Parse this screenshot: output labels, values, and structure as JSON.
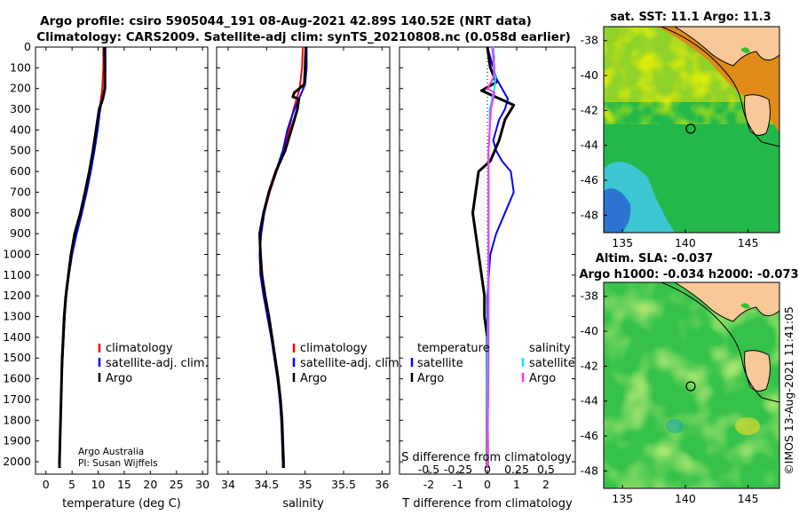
{
  "header": {
    "title1": "Argo profile: csiro 5905044_191 08-Aug-2021 42.89S 140.52E (NRT data)",
    "title2": "Climatology: CARS2009. Satellite-adj clim: synTS_20210808.nc (0.058d earlier)"
  },
  "colors": {
    "climatology": "#ff0000",
    "satellite": "#0000ff",
    "argo": "#000000",
    "sat_salinity": "#00e5ff",
    "argo_salinity": "#ff33ff",
    "land": "#f8c898"
  },
  "credits": {
    "line1": "Argo Australia",
    "line2": "PI: Susan Wijffels"
  },
  "watermark": "©IMOS 13-Aug-2021 11:41:05",
  "chart_data": [
    {
      "type": "line",
      "xlabel": "temperature (deg C)",
      "ylabel": "",
      "xlim": [
        -2,
        31
      ],
      "ylim": [
        2060,
        0
      ],
      "xticks": [
        "0",
        "5",
        "10",
        "15",
        "20",
        "25",
        "30"
      ],
      "yticks": [
        "0",
        "100",
        "200",
        "300",
        "400",
        "500",
        "600",
        "700",
        "800",
        "900",
        "1000",
        "1100",
        "1200",
        "1300",
        "1400",
        "1500",
        "1600",
        "1700",
        "1800",
        "1900",
        "2000"
      ],
      "legend": [
        "climatology",
        "satellite-adj. clim.",
        "Argo"
      ],
      "series": [
        {
          "name": "climatology",
          "points": [
            [
              11.0,
              0
            ],
            [
              11.0,
              100
            ],
            [
              10.8,
              200
            ],
            [
              10.3,
              300
            ],
            [
              9.8,
              400
            ],
            [
              9.2,
              500
            ],
            [
              8.5,
              600
            ],
            [
              7.7,
              700
            ],
            [
              6.9,
              800
            ],
            [
              5.8,
              900
            ],
            [
              5.0,
              1000
            ],
            [
              4.4,
              1100
            ],
            [
              3.9,
              1200
            ],
            [
              3.6,
              1300
            ],
            [
              3.4,
              1400
            ],
            [
              3.2,
              1500
            ],
            [
              3.0,
              1600
            ],
            [
              2.9,
              1700
            ],
            [
              2.8,
              1800
            ],
            [
              2.7,
              1900
            ],
            [
              2.6,
              2000
            ],
            [
              2.6,
              2030
            ]
          ]
        },
        {
          "name": "satellite-adj. clim.",
          "points": [
            [
              11.4,
              0
            ],
            [
              11.4,
              100
            ],
            [
              11.2,
              200
            ],
            [
              10.4,
              300
            ],
            [
              9.9,
              400
            ],
            [
              9.3,
              500
            ],
            [
              8.6,
              600
            ],
            [
              7.8,
              700
            ],
            [
              6.9,
              800
            ],
            [
              5.9,
              900
            ],
            [
              5.0,
              1000
            ],
            [
              4.4,
              1100
            ],
            [
              3.9,
              1200
            ],
            [
              3.6,
              1300
            ],
            [
              3.4,
              1400
            ],
            [
              3.2,
              1500
            ],
            [
              3.0,
              1600
            ],
            [
              2.9,
              1700
            ],
            [
              2.8,
              1800
            ],
            [
              2.7,
              1900
            ],
            [
              2.6,
              2000
            ],
            [
              2.6,
              2030
            ]
          ]
        },
        {
          "name": "Argo",
          "points": [
            [
              11.2,
              0
            ],
            [
              11.3,
              100
            ],
            [
              11.3,
              200
            ],
            [
              10.9,
              250
            ],
            [
              10.2,
              300
            ],
            [
              9.6,
              400
            ],
            [
              9.0,
              500
            ],
            [
              8.3,
              600
            ],
            [
              7.5,
              700
            ],
            [
              6.6,
              800
            ],
            [
              5.5,
              900
            ],
            [
              4.8,
              1000
            ],
            [
              4.3,
              1100
            ],
            [
              3.8,
              1200
            ],
            [
              3.5,
              1300
            ],
            [
              3.3,
              1400
            ],
            [
              3.1,
              1500
            ],
            [
              3.0,
              1600
            ],
            [
              2.9,
              1700
            ],
            [
              2.8,
              1800
            ],
            [
              2.7,
              1900
            ],
            [
              2.6,
              2000
            ],
            [
              2.6,
              2030
            ]
          ]
        }
      ]
    },
    {
      "type": "line",
      "xlabel": "salinity",
      "xlim": [
        33.85,
        36.1
      ],
      "ylim": [
        2060,
        0
      ],
      "xticks": [
        "34",
        "34.5",
        "35",
        "35.5",
        "36"
      ],
      "legend": [
        "climatology",
        "satellite-adj. clim.",
        "Argo"
      ],
      "series": [
        {
          "name": "climatology",
          "points": [
            [
              34.97,
              0
            ],
            [
              34.96,
              100
            ],
            [
              34.93,
              200
            ],
            [
              34.85,
              300
            ],
            [
              34.79,
              400
            ],
            [
              34.72,
              500
            ],
            [
              34.63,
              600
            ],
            [
              34.54,
              700
            ],
            [
              34.47,
              800
            ],
            [
              34.42,
              900
            ],
            [
              34.41,
              1000
            ],
            [
              34.42,
              1100
            ],
            [
              34.46,
              1200
            ],
            [
              34.51,
              1300
            ],
            [
              34.56,
              1400
            ],
            [
              34.6,
              1500
            ],
            [
              34.64,
              1600
            ],
            [
              34.67,
              1700
            ],
            [
              34.69,
              1800
            ],
            [
              34.7,
              1900
            ],
            [
              34.71,
              2000
            ],
            [
              34.71,
              2030
            ]
          ]
        },
        {
          "name": "satellite-adj. clim.",
          "points": [
            [
              35.02,
              0
            ],
            [
              35.02,
              100
            ],
            [
              35.0,
              180
            ],
            [
              34.92,
              250
            ],
            [
              34.84,
              320
            ],
            [
              34.77,
              400
            ],
            [
              34.71,
              500
            ],
            [
              34.62,
              600
            ],
            [
              34.53,
              700
            ],
            [
              34.47,
              800
            ],
            [
              34.43,
              900
            ],
            [
              34.41,
              1000
            ],
            [
              34.42,
              1100
            ],
            [
              34.46,
              1200
            ],
            [
              34.51,
              1300
            ],
            [
              34.56,
              1400
            ],
            [
              34.6,
              1500
            ],
            [
              34.64,
              1600
            ],
            [
              34.67,
              1700
            ],
            [
              34.69,
              1800
            ],
            [
              34.7,
              1900
            ],
            [
              34.71,
              2000
            ],
            [
              34.71,
              2030
            ]
          ]
        },
        {
          "name": "Argo",
          "points": [
            [
              35.01,
              0
            ],
            [
              35.0,
              100
            ],
            [
              34.99,
              180
            ],
            [
              34.86,
              220
            ],
            [
              34.84,
              240
            ],
            [
              34.92,
              250
            ],
            [
              34.9,
              300
            ],
            [
              34.82,
              400
            ],
            [
              34.74,
              500
            ],
            [
              34.62,
              600
            ],
            [
              34.53,
              700
            ],
            [
              34.46,
              800
            ],
            [
              34.41,
              900
            ],
            [
              34.42,
              1000
            ],
            [
              34.44,
              1100
            ],
            [
              34.48,
              1200
            ],
            [
              34.53,
              1300
            ],
            [
              34.57,
              1400
            ],
            [
              34.61,
              1500
            ],
            [
              34.65,
              1600
            ],
            [
              34.68,
              1700
            ],
            [
              34.7,
              1800
            ],
            [
              34.71,
              1900
            ],
            [
              34.72,
              2000
            ],
            [
              34.72,
              2030
            ]
          ]
        }
      ]
    },
    {
      "type": "line",
      "xlabel": "T difference from climatology",
      "top_xlabel": "S difference from climatology",
      "xlim": [
        -3,
        3
      ],
      "ylim": [
        2060,
        0
      ],
      "xticks": [
        "-2",
        "-1",
        "0",
        "1",
        "2"
      ],
      "top_xticks": [
        "-0.5",
        "-0.25",
        "0",
        "0.25",
        "0.5"
      ],
      "legend_groups": [
        {
          "title": "temperature",
          "items": [
            "satellite",
            "Argo"
          ]
        },
        {
          "title": "salinity",
          "items": [
            "satellite",
            "Argo"
          ]
        }
      ],
      "series": [
        {
          "name": "T satellite",
          "points": [
            [
              0.0,
              0
            ],
            [
              0.1,
              50
            ],
            [
              0.2,
              100
            ],
            [
              0.3,
              150
            ],
            [
              0.5,
              200
            ],
            [
              0.7,
              250
            ],
            [
              0.6,
              300
            ],
            [
              0.4,
              350
            ],
            [
              0.3,
              400
            ],
            [
              0.2,
              450
            ],
            [
              0.3,
              500
            ],
            [
              0.5,
              550
            ],
            [
              0.8,
              600
            ],
            [
              0.9,
              700
            ],
            [
              0.6,
              800
            ],
            [
              0.3,
              900
            ],
            [
              0.1,
              1000
            ],
            [
              0.0,
              1200
            ],
            [
              0.0,
              1500
            ],
            [
              0.0,
              2030
            ]
          ]
        },
        {
          "name": "T Argo",
          "points": [
            [
              0.0,
              0
            ],
            [
              0.1,
              100
            ],
            [
              0.3,
              170
            ],
            [
              -0.2,
              210
            ],
            [
              0.9,
              280
            ],
            [
              0.6,
              350
            ],
            [
              0.4,
              450
            ],
            [
              0.1,
              550
            ],
            [
              -0.3,
              600
            ],
            [
              -0.4,
              700
            ],
            [
              -0.5,
              800
            ],
            [
              -0.4,
              900
            ],
            [
              -0.3,
              1000
            ],
            [
              -0.2,
              1100
            ],
            [
              -0.1,
              1200
            ],
            [
              -0.1,
              1300
            ],
            [
              0.0,
              1400
            ],
            [
              0.0,
              1600
            ],
            [
              0.0,
              2030
            ]
          ]
        },
        {
          "name": "S satellite",
          "points": [
            [
              0.05,
              0
            ],
            [
              0.06,
              50
            ],
            [
              0.05,
              100
            ],
            [
              0.07,
              150
            ],
            [
              0.06,
              200
            ],
            [
              0.04,
              250
            ],
            [
              0.02,
              300
            ],
            [
              0.02,
              400
            ],
            [
              0.01,
              500
            ],
            [
              0.01,
              700
            ],
            [
              0.01,
              1000
            ],
            [
              0.0,
              1500
            ],
            [
              0.0,
              2030
            ]
          ]
        },
        {
          "name": "S Argo",
          "points": [
            [
              0.04,
              0
            ],
            [
              0.05,
              50
            ],
            [
              0.06,
              100
            ],
            [
              0.05,
              150
            ],
            [
              0.0,
              200
            ],
            [
              0.06,
              220
            ],
            [
              0.03,
              300
            ],
            [
              0.02,
              400
            ],
            [
              0.01,
              500
            ],
            [
              0.01,
              700
            ],
            [
              0.01,
              1000
            ],
            [
              0.01,
              1500
            ],
            [
              0.0,
              2030
            ]
          ]
        }
      ]
    },
    {
      "type": "heatmap",
      "title": "sat. SST: 11.1 Argo: 11.3",
      "xlim": [
        133.5,
        147.5
      ],
      "ylim": [
        -49,
        -37.2
      ],
      "xticks": [
        "135",
        "140",
        "145"
      ],
      "yticks": [
        "-38",
        "-40",
        "-42",
        "-44",
        "-46",
        "-48"
      ],
      "argo_lon": 140.52,
      "argo_lat": -42.89
    },
    {
      "type": "heatmap",
      "title": "Altim. SLA: -0.037",
      "subtitle": "Argo h1000: -0.034 h2000: -0.073",
      "xlim": [
        133.5,
        147.5
      ],
      "ylim": [
        -49,
        -37.2
      ],
      "xticks": [
        "135",
        "140",
        "145"
      ],
      "yticks": [
        "-38",
        "-40",
        "-42",
        "-44",
        "-46",
        "-48"
      ],
      "argo_lon": 140.52,
      "argo_lat": -42.89
    }
  ]
}
